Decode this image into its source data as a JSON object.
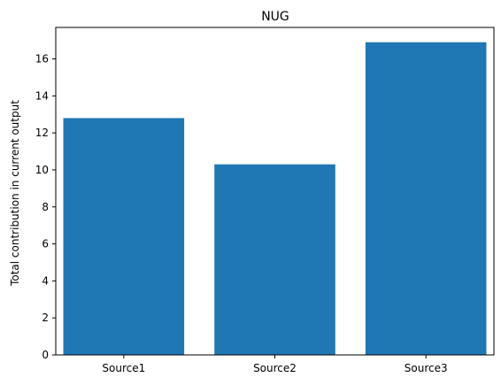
{
  "chart_data": {
    "type": "bar",
    "title": "NUG",
    "xlabel": "",
    "ylabel": "Total contribution in current output",
    "categories": [
      "Source1",
      "Source2",
      "Source3"
    ],
    "values": [
      12.8,
      10.3,
      16.9
    ],
    "ylim": [
      0,
      17.7
    ],
    "yticks": [
      0,
      2,
      4,
      6,
      8,
      10,
      12,
      14,
      16
    ],
    "grid": false,
    "legend": "none",
    "bar_color": "#1f77b4"
  }
}
